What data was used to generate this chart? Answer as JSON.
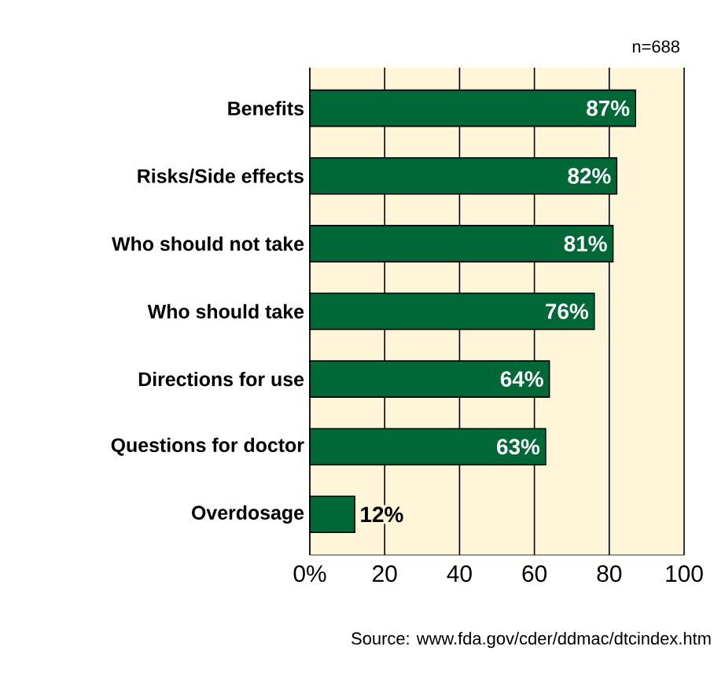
{
  "chart_data": {
    "type": "bar",
    "orientation": "horizontal",
    "categories": [
      "Benefits",
      "Risks/Side effects",
      "Who should not take",
      "Who should take",
      "Directions for use",
      "Questions for doctor",
      "Overdosage"
    ],
    "values": [
      87,
      82,
      81,
      76,
      64,
      63,
      12
    ],
    "value_labels": [
      "87%",
      "82%",
      "81%",
      "76%",
      "64%",
      "63%",
      "12%"
    ],
    "color": "#006837",
    "xlim": [
      0,
      100
    ],
    "xticks": [
      {
        "value": 0,
        "label": "0%"
      },
      20,
      40,
      60,
      80,
      100
    ],
    "grid": "x",
    "annotations": [
      "n=688",
      "Source: www.fda.gov/cder/ddmac/dtcindex.htm"
    ]
  }
}
